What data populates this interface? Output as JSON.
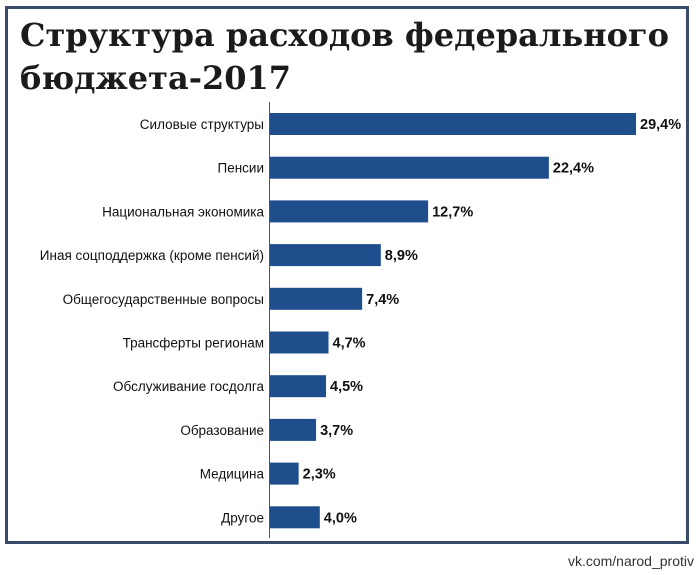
{
  "chart_data": {
    "type": "bar",
    "orientation": "horizontal",
    "title": "Структура расходов федерального бюджета-2017",
    "categories": [
      "Силовые структуры",
      "Пенсии",
      "Национальная экономика",
      "Иная соцподдержка (кроме пенсий)",
      "Общегосударственные вопросы",
      "Трансферты регионам",
      "Обслуживание госдолга",
      "Образование",
      "Медицина",
      "Другое"
    ],
    "values": [
      29.4,
      22.4,
      12.7,
      8.9,
      7.4,
      4.7,
      4.5,
      3.7,
      2.3,
      4.0
    ],
    "value_labels": [
      "29,4%",
      "22,4%",
      "12,7%",
      "8,9%",
      "7,4%",
      "4,7%",
      "4,5%",
      "3,7%",
      "2,3%",
      "4,0%"
    ],
    "unit": "%",
    "bar_color": "#1f4e8c",
    "xlabel": "",
    "ylabel": "",
    "grid": false,
    "legend": "none"
  },
  "watermark": "vk.com/narod_protiv"
}
